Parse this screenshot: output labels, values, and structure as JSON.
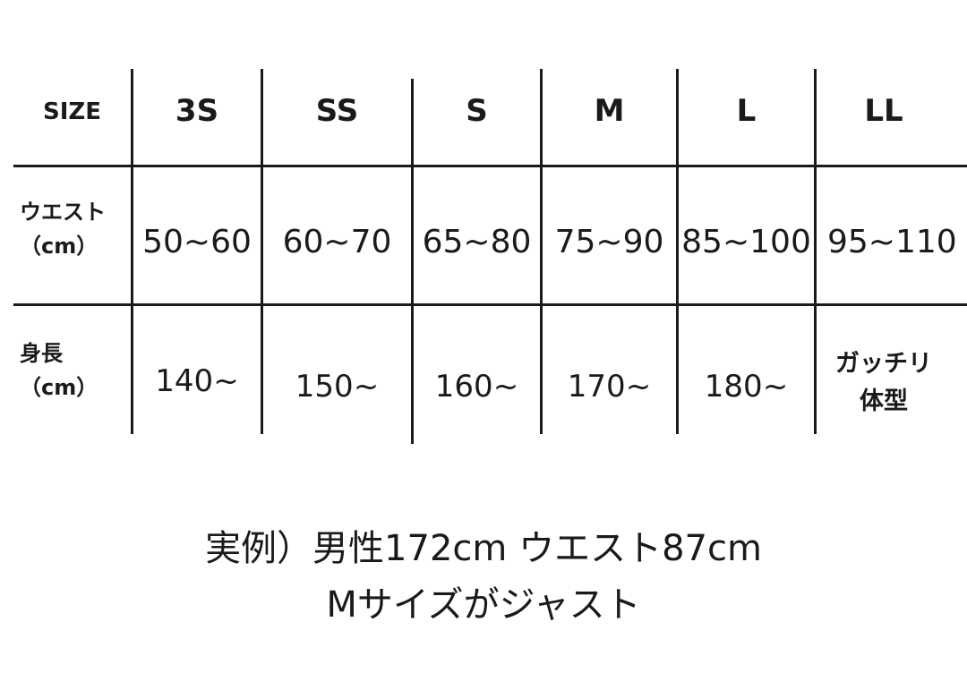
{
  "table": {
    "header_label": "SIZE",
    "sizes": [
      "3S",
      "SS",
      "S",
      "M",
      "L",
      "LL"
    ],
    "rows": [
      {
        "label_line1": "ウエスト",
        "label_line2": "（cm）",
        "values": [
          "50~60",
          "60~70",
          "65~80",
          "75~90",
          "85~100",
          "95~110"
        ]
      },
      {
        "label_line1": "身長",
        "label_line2": "（cm）",
        "values": [
          "140~",
          "150~",
          "160~",
          "170~",
          "180~"
        ],
        "last_line1": "ガッチリ",
        "last_line2": "体型"
      }
    ]
  },
  "note": {
    "line1": "実例）男性172cm ウエスト87cm",
    "line2": "Mサイズがジャスト"
  }
}
